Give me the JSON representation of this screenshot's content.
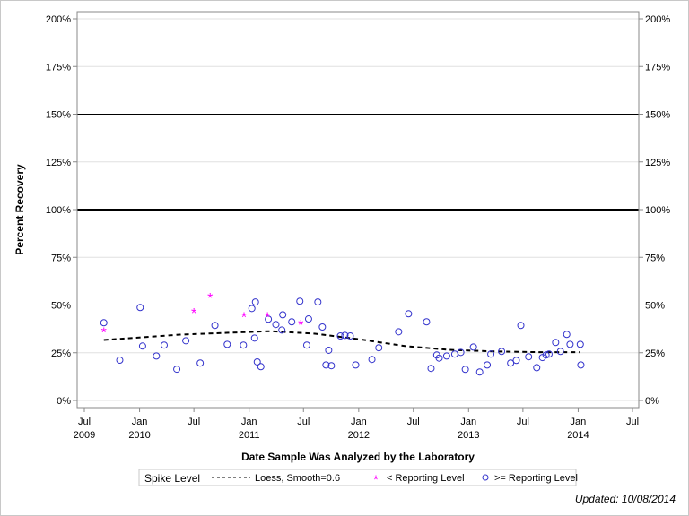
{
  "chart_data": {
    "type": "scatter",
    "xlabel": "Date Sample Was Analyzed by the Laboratory",
    "ylabel": "Percent Recovery",
    "xlim": [
      "2009-07-01",
      "2014-07-01"
    ],
    "ylim": [
      0,
      200
    ],
    "y_ticks": [
      "0%",
      "25%",
      "50%",
      "75%",
      "100%",
      "125%",
      "150%",
      "175%",
      "200%"
    ],
    "y_tick_values": [
      0,
      25,
      50,
      75,
      100,
      125,
      150,
      175,
      200
    ],
    "x_ticks": [
      {
        "date": "2009-07-01",
        "line1": "Jul",
        "line2": "2009"
      },
      {
        "date": "2010-01-01",
        "line1": "Jan",
        "line2": "2010"
      },
      {
        "date": "2010-07-01",
        "line1": "Jul",
        "line2": ""
      },
      {
        "date": "2011-01-01",
        "line1": "Jan",
        "line2": "2011"
      },
      {
        "date": "2011-07-01",
        "line1": "Jul",
        "line2": ""
      },
      {
        "date": "2012-01-01",
        "line1": "Jan",
        "line2": "2012"
      },
      {
        "date": "2012-07-01",
        "line1": "Jul",
        "line2": ""
      },
      {
        "date": "2013-01-01",
        "line1": "Jan",
        "line2": "2013"
      },
      {
        "date": "2013-07-01",
        "line1": "Jul",
        "line2": ""
      },
      {
        "date": "2014-01-01",
        "line1": "Jan",
        "line2": "2014"
      },
      {
        "date": "2014-07-01",
        "line1": "Jul",
        "line2": ""
      }
    ],
    "grid": true,
    "reference_lines": [
      {
        "y": 150,
        "color": "#000000",
        "style": "thin"
      },
      {
        "y": 100,
        "color": "#000000",
        "style": "thick"
      },
      {
        "y": 50,
        "color": "#3333cc",
        "style": "thin"
      }
    ],
    "series": [
      {
        "name": ">= Reporting Level",
        "marker": "circle",
        "color": "#3333cc",
        "points": [
          [
            "2009-09-04",
            40.7
          ],
          [
            "2009-10-27",
            21.1
          ],
          [
            "2010-01-03",
            48.7
          ],
          [
            "2010-01-11",
            28.5
          ],
          [
            "2010-02-26",
            23.3
          ],
          [
            "2010-03-24",
            29.0
          ],
          [
            "2010-05-05",
            16.4
          ],
          [
            "2010-06-04",
            31.3
          ],
          [
            "2010-07-22",
            19.6
          ],
          [
            "2010-09-09",
            39.3
          ],
          [
            "2010-10-20",
            29.4
          ],
          [
            "2010-12-13",
            29.0
          ],
          [
            "2011-01-10",
            48.2
          ],
          [
            "2011-01-19",
            32.7
          ],
          [
            "2011-01-22",
            51.6
          ],
          [
            "2011-01-28",
            20.2
          ],
          [
            "2011-02-09",
            17.7
          ],
          [
            "2011-03-06",
            42.6
          ],
          [
            "2011-03-31",
            39.8
          ],
          [
            "2011-04-20",
            36.9
          ],
          [
            "2011-04-23",
            44.9
          ],
          [
            "2011-05-23",
            41.2
          ],
          [
            "2011-06-19",
            52.0
          ],
          [
            "2011-07-12",
            29.0
          ],
          [
            "2011-07-18",
            42.7
          ],
          [
            "2011-08-18",
            51.6
          ],
          [
            "2011-09-02",
            38.5
          ],
          [
            "2011-09-14",
            18.6
          ],
          [
            "2011-09-23",
            26.3
          ],
          [
            "2011-10-02",
            18.2
          ],
          [
            "2011-11-01",
            33.8
          ],
          [
            "2011-11-16",
            34.1
          ],
          [
            "2011-12-04",
            33.8
          ],
          [
            "2011-12-22",
            18.6
          ],
          [
            "2012-02-14",
            21.5
          ],
          [
            "2012-03-08",
            27.6
          ],
          [
            "2012-05-13",
            36.0
          ],
          [
            "2012-06-15",
            45.4
          ],
          [
            "2012-08-14",
            41.2
          ],
          [
            "2012-08-29",
            16.8
          ],
          [
            "2012-09-17",
            23.8
          ],
          [
            "2012-09-25",
            22.2
          ],
          [
            "2012-10-20",
            23.3
          ],
          [
            "2012-11-16",
            24.3
          ],
          [
            "2012-12-06",
            25.2
          ],
          [
            "2012-12-21",
            16.3
          ],
          [
            "2013-01-17",
            28.0
          ],
          [
            "2013-02-07",
            14.9
          ],
          [
            "2013-03-04",
            18.6
          ],
          [
            "2013-03-16",
            24.3
          ],
          [
            "2013-04-21",
            25.7
          ],
          [
            "2013-05-21",
            19.6
          ],
          [
            "2013-06-09",
            21.0
          ],
          [
            "2013-06-24",
            39.3
          ],
          [
            "2013-07-20",
            22.9
          ],
          [
            "2013-08-16",
            17.2
          ],
          [
            "2013-09-04",
            22.5
          ],
          [
            "2013-09-16",
            23.8
          ],
          [
            "2013-09-26",
            24.3
          ],
          [
            "2013-10-18",
            30.4
          ],
          [
            "2013-11-03",
            25.7
          ],
          [
            "2013-11-24",
            34.6
          ],
          [
            "2013-12-05",
            29.4
          ],
          [
            "2014-01-08",
            29.4
          ],
          [
            "2014-01-10",
            18.6
          ]
        ]
      },
      {
        "name": "< Reporting Level",
        "marker": "asterisk",
        "color": "#ff00ff",
        "points": [
          [
            "2009-09-04",
            36.0
          ],
          [
            "2010-07-01",
            45.9
          ],
          [
            "2010-08-24",
            53.9
          ],
          [
            "2010-12-15",
            44.0
          ],
          [
            "2011-03-03",
            44.0
          ],
          [
            "2011-06-22",
            40.0
          ]
        ]
      },
      {
        "name": "Loess, Smooth=0.6",
        "marker": "dashed-line",
        "color": "#000000",
        "points": [
          [
            "2009-09-04",
            31.7
          ],
          [
            "2010-05-16",
            34.5
          ],
          [
            "2011-03-11",
            36.3
          ],
          [
            "2011-08-08",
            35.0
          ],
          [
            "2012-01-06",
            32.0
          ],
          [
            "2012-06-03",
            28.5
          ],
          [
            "2012-10-30",
            26.5
          ],
          [
            "2013-03-28",
            25.7
          ],
          [
            "2013-08-25",
            25.3
          ],
          [
            "2014-01-07",
            25.3
          ]
        ]
      }
    ],
    "legend": {
      "title": "Spike Level",
      "placement": "bottom"
    }
  },
  "footer": {
    "updated": "Updated: 10/08/2014"
  }
}
